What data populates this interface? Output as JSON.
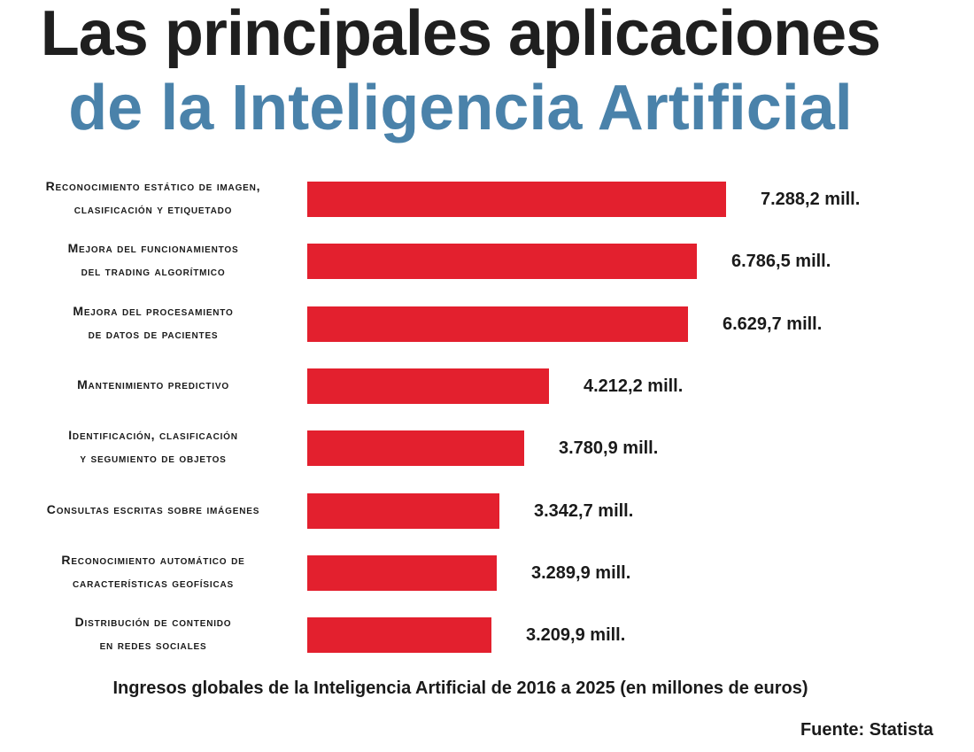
{
  "title": {
    "line1": "Las principales aplicaciones",
    "line2": "de la Inteligencia Artificial"
  },
  "chart_data": {
    "type": "bar",
    "orientation": "horizontal",
    "title": "Las principales aplicaciones de la Inteligencia Artificial",
    "xlabel": "Ingresos globales de la Inteligencia Artificial de 2016 a 2025 (en millones de euros)",
    "ylabel": "",
    "xlim": [
      0,
      7288.2
    ],
    "categories": [
      "Reconocimiento estático de imagen,\nclasificación y etiquetado",
      "Mejora del funcionamientos\ndel trading algorítmico",
      "Mejora del procesamiento\nde datos de pacientes",
      "Mantenimiento predictivo",
      "Identificación, clasificación\ny segumiento de objetos",
      "Consultas escritas sobre imágenes",
      "Reconocimiento automático de\ncaracterísticas geofísicas",
      "Distribución de contenido\nen redes sociales"
    ],
    "values": [
      7288.2,
      6786.5,
      6629.7,
      4212.2,
      3780.9,
      3342.7,
      3289.9,
      3209.9
    ],
    "value_labels": [
      "7.288,2 mill.",
      "6.786,5 mill.",
      "6.629,7 mill.",
      "4.212,2 mill.",
      "3.780,9 mill.",
      "3.342,7 mill.",
      "3.289,9 mill.",
      "3.209,9 mill."
    ],
    "bar_color": "#e3202e",
    "grid": false
  },
  "caption": "Ingresos globales de la Inteligencia Artificial de 2016 a 2025 (en millones de euros)",
  "source": "Fuente: Statista",
  "colors": {
    "title_dark": "#1f1f1f",
    "title_blue": "#4a82aa",
    "bar": "#e3202e",
    "text": "#1a1a1a"
  }
}
